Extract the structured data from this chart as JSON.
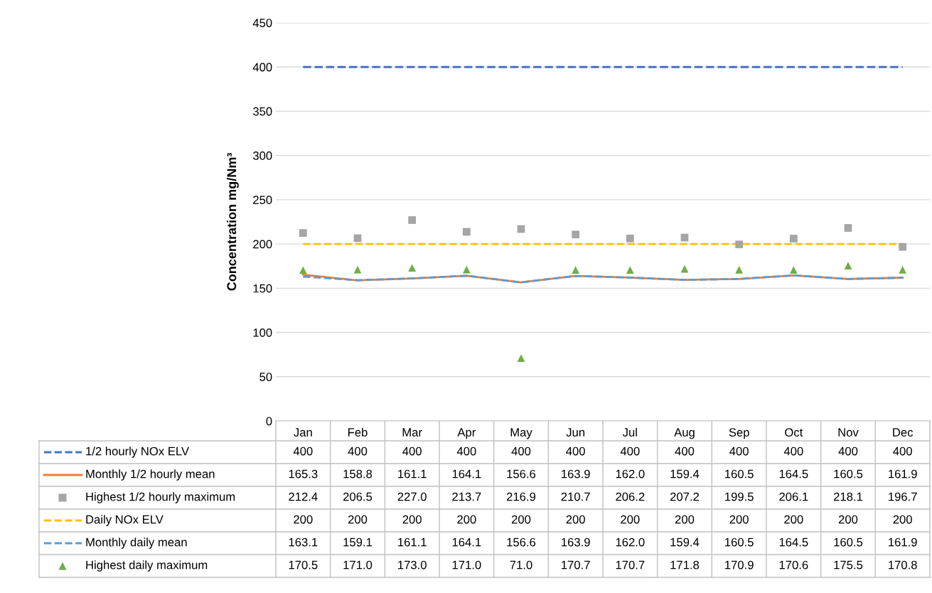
{
  "chart_data": {
    "type": "line",
    "ylabel": "Concentration mg/Nm³",
    "categories": [
      "Jan",
      "Feb",
      "Mar",
      "Apr",
      "May",
      "Jun",
      "Jul",
      "Aug",
      "Sep",
      "Oct",
      "Nov",
      "Dec"
    ],
    "ylim": [
      0,
      450
    ],
    "yticks": [
      0,
      50,
      100,
      150,
      200,
      250,
      300,
      350,
      400,
      450
    ],
    "grid": "y",
    "legend": "bottom",
    "series": [
      {
        "name": "1/2 hourly NOx ELV",
        "line_style": "dashed",
        "marker": "none",
        "color": "#4472c4",
        "values": [
          400,
          400,
          400,
          400,
          400,
          400,
          400,
          400,
          400,
          400,
          400,
          400
        ],
        "value_labels": [
          "400",
          "400",
          "400",
          "400",
          "400",
          "400",
          "400",
          "400",
          "400",
          "400",
          "400",
          "400"
        ]
      },
      {
        "name": "Monthly 1/2 hourly mean",
        "line_style": "solid",
        "marker": "none",
        "color": "#ed7d31",
        "values": [
          165.3,
          158.8,
          161.1,
          164.1,
          156.6,
          163.9,
          162.0,
          159.4,
          160.5,
          164.5,
          160.5,
          161.9
        ],
        "value_labels": [
          "165.3",
          "158.8",
          "161.1",
          "164.1",
          "156.6",
          "163.9",
          "162.0",
          "159.4",
          "160.5",
          "164.5",
          "160.5",
          "161.9"
        ]
      },
      {
        "name": "Highest 1/2 hourly maximum",
        "type": "scatter",
        "marker": "square",
        "color": "#a5a5a5",
        "values": [
          212.4,
          206.5,
          227.0,
          213.7,
          216.9,
          210.7,
          206.2,
          207.2,
          199.5,
          206.1,
          218.1,
          196.7
        ],
        "value_labels": [
          "212.4",
          "206.5",
          "227.0",
          "213.7",
          "216.9",
          "210.7",
          "206.2",
          "207.2",
          "199.5",
          "206.1",
          "218.1",
          "196.7"
        ]
      },
      {
        "name": "Daily NOx ELV",
        "line_style": "dashed",
        "marker": "none",
        "color": "#ffc000",
        "values": [
          200,
          200,
          200,
          200,
          200,
          200,
          200,
          200,
          200,
          200,
          200,
          200
        ],
        "value_labels": [
          "200",
          "200",
          "200",
          "200",
          "200",
          "200",
          "200",
          "200",
          "200",
          "200",
          "200",
          "200"
        ]
      },
      {
        "name": "Monthly daily mean",
        "line_style": "dashed",
        "marker": "none",
        "color": "#5b9bd5",
        "values": [
          163.1,
          159.1,
          161.1,
          164.1,
          156.6,
          163.9,
          162.0,
          159.4,
          160.5,
          164.5,
          160.5,
          161.9
        ],
        "value_labels": [
          "163.1",
          "159.1",
          "161.1",
          "164.1",
          "156.6",
          "163.9",
          "162.0",
          "159.4",
          "160.5",
          "164.5",
          "160.5",
          "161.9"
        ]
      },
      {
        "name": "Highest daily maximum",
        "type": "scatter",
        "marker": "triangle",
        "color": "#70ad47",
        "values": [
          170.5,
          171.0,
          173.0,
          171.0,
          71.0,
          170.7,
          170.7,
          171.8,
          170.9,
          170.6,
          175.5,
          170.8
        ],
        "value_labels": [
          "170.5",
          "171.0",
          "173.0",
          "171.0",
          "71.0",
          "170.7",
          "170.7",
          "171.8",
          "170.9",
          "170.6",
          "175.5",
          "170.8"
        ]
      }
    ]
  }
}
